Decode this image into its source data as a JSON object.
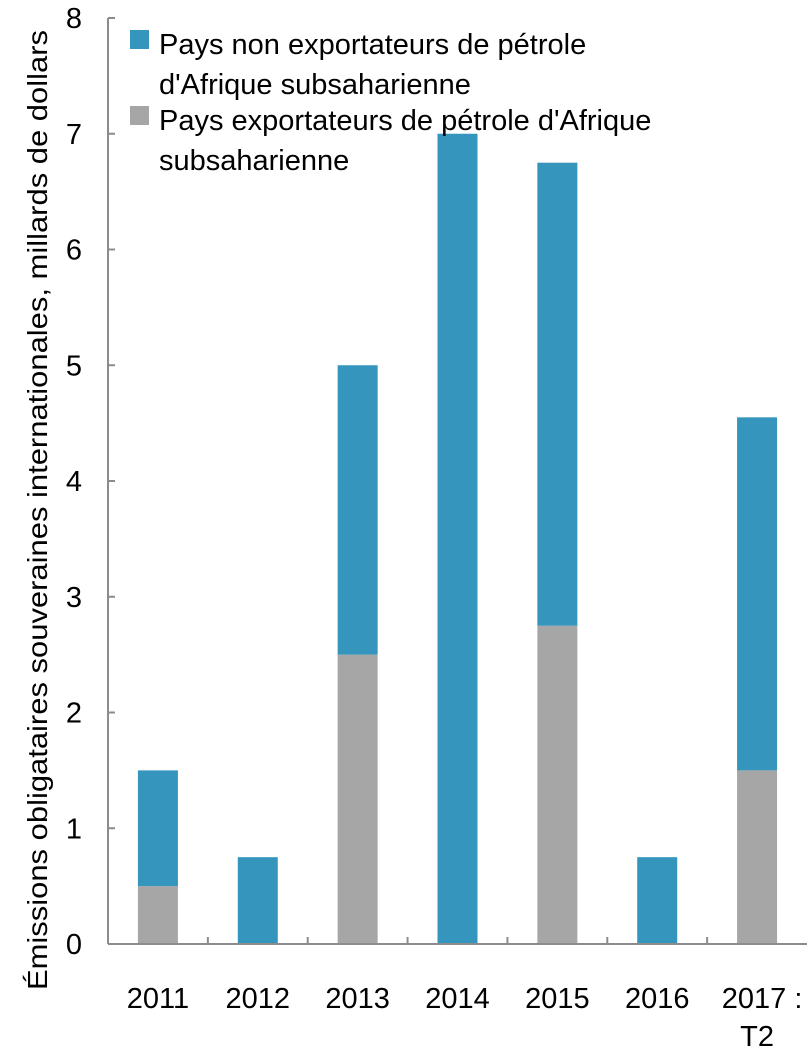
{
  "chart_data": {
    "type": "bar",
    "stacked": true,
    "categories": [
      "2011",
      "2012",
      "2013",
      "2014",
      "2015",
      "2016",
      "2017 : T2"
    ],
    "category_lines": [
      [
        "2011"
      ],
      [
        "2012"
      ],
      [
        "2013"
      ],
      [
        "2014"
      ],
      [
        "2015"
      ],
      [
        "2016"
      ],
      [
        "2017 :",
        "T2"
      ]
    ],
    "series": [
      {
        "name": "Pays exportateurs de pétrole d'Afrique subsaharienne",
        "name_lines": [
          "Pays exportateurs de pétrole d'Afrique",
          "subsaharienne"
        ],
        "color": "#a6a6a6",
        "values": [
          0.5,
          0,
          2.5,
          0,
          2.75,
          0,
          1.5
        ]
      },
      {
        "name": "Pays non exportateurs de pétrole d'Afrique subsaharienne",
        "name_lines": [
          "Pays non exportateurs de pétrole",
          "d'Afrique subsaharienne"
        ],
        "color": "#3595bc",
        "values": [
          1.0,
          0.75,
          2.5,
          7.0,
          4.0,
          0.75,
          3.05
        ]
      }
    ],
    "ylabel": "Émissions obligataires souveraines internationales, millards de dollars",
    "xlabel": "",
    "ylim": [
      0,
      8
    ],
    "yticks": [
      0,
      1,
      2,
      3,
      4,
      5,
      6,
      7,
      8
    ],
    "grid": false,
    "legend_position": "top-left"
  }
}
